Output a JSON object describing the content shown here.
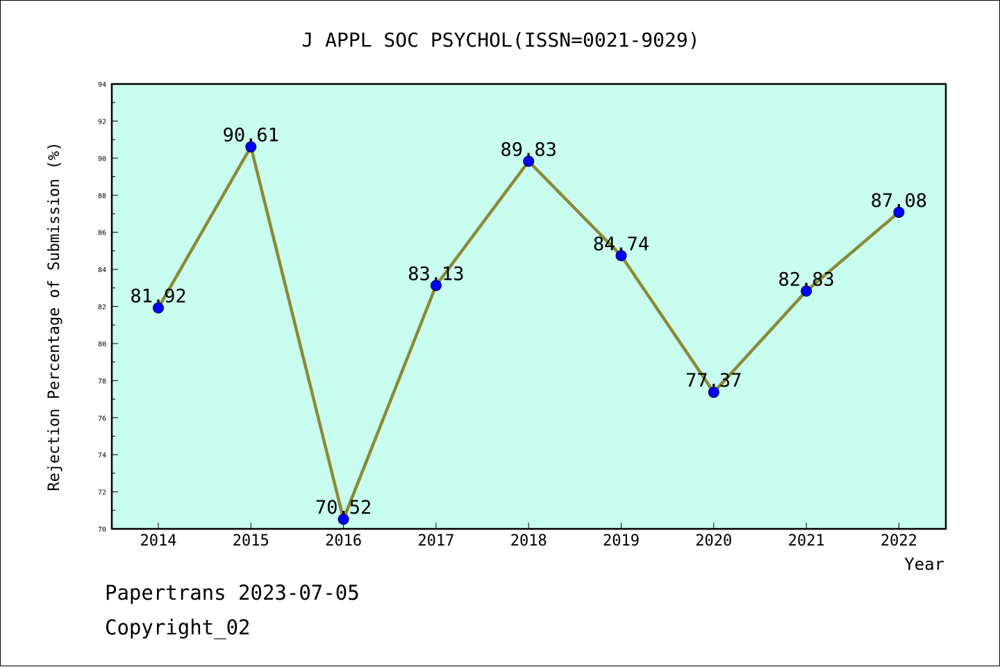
{
  "chart_data": {
    "type": "line",
    "title": "J APPL SOC PSYCHOL(ISSN=0021-9029)",
    "xlabel": "Year",
    "ylabel": "Rejection Percentage of Submission (%)",
    "categories": [
      "2014",
      "2015",
      "2016",
      "2017",
      "2018",
      "2019",
      "2020",
      "2021",
      "2022"
    ],
    "values": [
      81.92,
      90.61,
      70.52,
      83.13,
      89.83,
      84.74,
      77.37,
      82.83,
      87.08
    ],
    "data_labels": [
      "81.92",
      "90.61",
      "70.52",
      "83.13",
      "89.83",
      "84.74",
      "77.37",
      "82.83",
      "87.08"
    ],
    "ylim": [
      70,
      94
    ],
    "yticks": [
      70,
      72,
      74,
      76,
      78,
      80,
      82,
      84,
      86,
      88,
      90,
      92,
      94
    ],
    "grid": false,
    "colors": {
      "plot_background": "#c8fcee",
      "line": "#8a8a36",
      "marker": "#0000ff"
    }
  },
  "footer": {
    "source": "Papertrans 2023-07-05",
    "copyright": "Copyright_02"
  }
}
